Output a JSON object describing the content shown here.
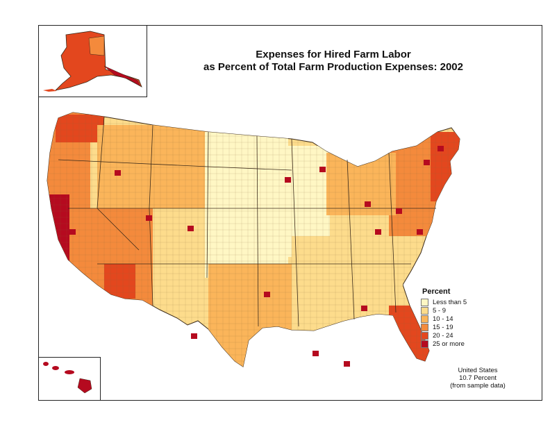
{
  "title": {
    "line_1": "Expenses for Hired Farm Labor",
    "line_2": "as Percent of Total Farm Production Expenses:  2002"
  },
  "legend": {
    "title": "Percent",
    "items": [
      {
        "label": "Less than 5",
        "color": "#FFF7C4"
      },
      {
        "label": "5 - 9",
        "color": "#FDDC8C"
      },
      {
        "label": "10 - 14",
        "color": "#FBB55A"
      },
      {
        "label": "15 - 19",
        "color": "#F48A3C"
      },
      {
        "label": "20 - 24",
        "color": "#E3471E"
      },
      {
        "label": "25 or more",
        "color": "#B50A1F"
      }
    ]
  },
  "summary": {
    "line_1": "United States",
    "line_2": "10.7 Percent",
    "line_3": "(from sample data)"
  },
  "colors": {
    "border": "#222222",
    "county_line": "#8a6a3a",
    "state_line": "#3a2a1a"
  }
}
